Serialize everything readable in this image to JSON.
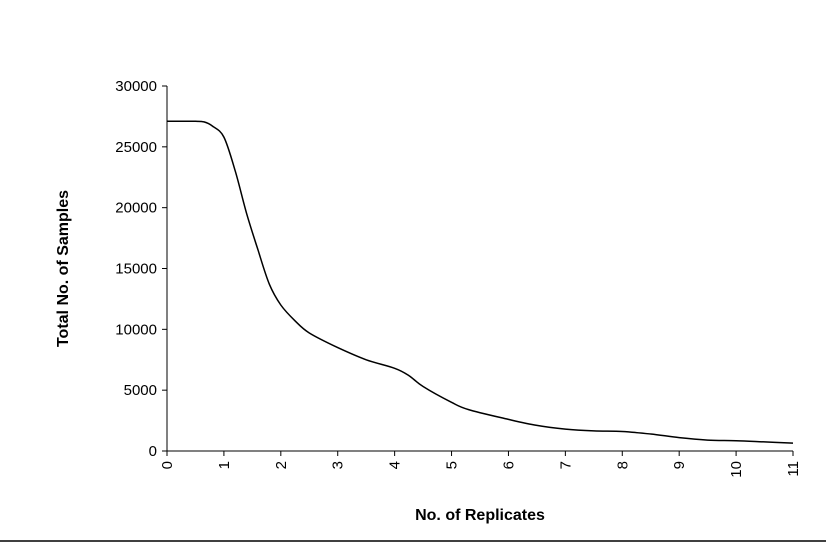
{
  "chart_data": {
    "type": "line",
    "title": "",
    "xlabel": "No. of Replicates",
    "ylabel": "Total No. of Samples",
    "xlim": [
      0,
      11
    ],
    "ylim": [
      0,
      30000
    ],
    "grid": false,
    "legend": "none",
    "x_ticks": [
      0,
      1,
      2,
      3,
      4,
      5,
      6,
      7,
      8,
      9,
      10,
      11
    ],
    "x_tick_labels": [
      "0",
      "1",
      "2",
      "3",
      "4",
      "5",
      "6",
      "7",
      "8",
      "9",
      "10",
      "11"
    ],
    "y_ticks": [
      0,
      5000,
      10000,
      15000,
      20000,
      25000,
      30000
    ],
    "y_tick_labels": [
      "0",
      "5000",
      "10000",
      "15000",
      "20000",
      "25000",
      "30000"
    ],
    "series": [
      {
        "line_color": "#000000",
        "x": [
          0,
          0.25,
          0.5,
          0.65,
          0.8,
          1.0,
          1.2,
          1.4,
          1.6,
          1.8,
          2.0,
          2.25,
          2.5,
          3.0,
          3.5,
          4.0,
          4.25,
          4.5,
          5.0,
          5.3,
          6.0,
          6.5,
          7.0,
          7.5,
          8.0,
          8.5,
          9.0,
          9.5,
          10.0,
          10.5,
          11.0
        ],
        "y": [
          27100,
          27100,
          27100,
          27050,
          26700,
          25800,
          23000,
          19500,
          16500,
          13700,
          12000,
          10700,
          9700,
          8500,
          7500,
          6800,
          6200,
          5300,
          4000,
          3400,
          2600,
          2100,
          1800,
          1650,
          1600,
          1400,
          1100,
          900,
          850,
          750,
          650
        ]
      }
    ]
  }
}
